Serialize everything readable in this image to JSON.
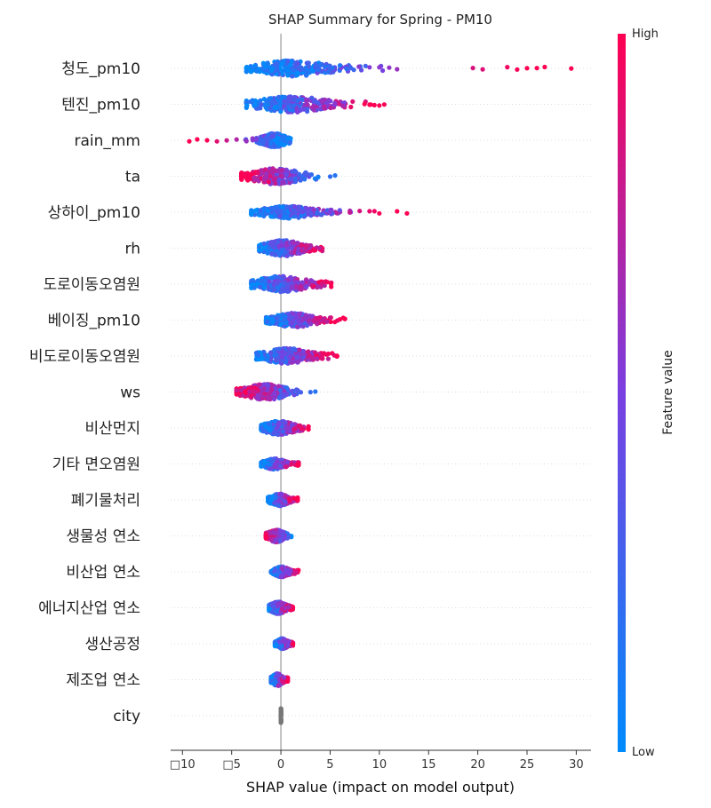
{
  "chart_data": {
    "type": "scatter",
    "title": "SHAP Summary for Spring - PM10",
    "xlabel": "SHAP value (impact on model output)",
    "xlim": [
      -11.2,
      31.5
    ],
    "xticks": [
      -10,
      -5,
      0,
      5,
      10,
      15,
      20,
      25,
      30
    ],
    "xtick_labels": [
      "□10",
      "□5",
      "0",
      "5",
      "10",
      "15",
      "20",
      "25",
      "30"
    ],
    "colorbar": {
      "label": "Feature value",
      "high": "High",
      "low": "Low",
      "color_low": "#008bfb",
      "color_high": "#ff0052"
    },
    "features": [
      {
        "name": "청도_pm10",
        "min": -3.5,
        "max": 29.5,
        "core": [
          -3.0,
          8.0
        ],
        "outliers": [
          9,
          10,
          11,
          11.8,
          19.5,
          20.5,
          23,
          24,
          25,
          26,
          26.8,
          29.5
        ],
        "trend": 1,
        "spread": 9
      },
      {
        "name": "텐진_pm10",
        "min": -3.5,
        "max": 10.5,
        "core": [
          -3.0,
          8.0
        ],
        "outliers": [
          8.5,
          9,
          9.5,
          10,
          10.5
        ],
        "trend": 1,
        "spread": 9
      },
      {
        "name": "rain_mm",
        "min": -9.3,
        "max": 1.5,
        "core": [
          -2.0,
          1.5
        ],
        "outliers": [
          -9.3,
          -8.5,
          -7.5,
          -6.5,
          -5.5,
          -4.5,
          -3.5,
          -2.5
        ],
        "trend": -1,
        "spread": 8
      },
      {
        "name": "ta",
        "min": -4.0,
        "max": 5.5,
        "core": [
          -3.5,
          4.5
        ],
        "outliers": [
          5.0,
          5.5
        ],
        "trend": -1,
        "spread": 9
      },
      {
        "name": "상하이_pm10",
        "min": -3.0,
        "max": 12.8,
        "core": [
          -2.5,
          6.0
        ],
        "outliers": [
          7,
          8,
          9,
          9.5,
          10,
          11.8,
          12.8
        ],
        "trend": 1,
        "spread": 7
      },
      {
        "name": "rh",
        "min": -2.2,
        "max": 4.2,
        "core": [
          -2.0,
          4.0
        ],
        "outliers": [],
        "trend": 1,
        "spread": 9
      },
      {
        "name": "도로이동오염원",
        "min": -3.0,
        "max": 5.3,
        "core": [
          -3.0,
          5.0
        ],
        "outliers": [],
        "trend": 1,
        "spread": 9
      },
      {
        "name": "베이징_pm10",
        "min": -1.5,
        "max": 6.5,
        "core": [
          -1.2,
          5.5
        ],
        "outliers": [
          6.0,
          6.5
        ],
        "trend": 1,
        "spread": 8
      },
      {
        "name": "비도로이동오염원",
        "min": -2.5,
        "max": 5.7,
        "core": [
          -2.0,
          4.8
        ],
        "outliers": [
          -2.3,
          5.7
        ],
        "trend": 1,
        "spread": 9
      },
      {
        "name": "ws",
        "min": -4.5,
        "max": 3.5,
        "core": [
          -4.0,
          2.5
        ],
        "outliers": [
          3.0,
          3.5
        ],
        "trend": -1,
        "spread": 9
      },
      {
        "name": "비산먼지",
        "min": -2.0,
        "max": 2.8,
        "core": [
          -2.0,
          2.8
        ],
        "outliers": [],
        "trend": 1,
        "spread": 8
      },
      {
        "name": "기타 면오염원",
        "min": -2.0,
        "max": 1.8,
        "core": [
          -2.0,
          1.5
        ],
        "outliers": [],
        "trend": 1,
        "spread": 6
      },
      {
        "name": "폐기물처리",
        "min": -1.3,
        "max": 1.7,
        "core": [
          -1.2,
          1.5
        ],
        "outliers": [],
        "trend": 1,
        "spread": 7
      },
      {
        "name": "생물성 연소",
        "min": -1.5,
        "max": 1.3,
        "core": [
          -1.5,
          1.2
        ],
        "outliers": [],
        "trend": -1,
        "spread": 7
      },
      {
        "name": "비산업 연소",
        "min": -1.0,
        "max": 1.8,
        "core": [
          -0.8,
          1.5
        ],
        "outliers": [],
        "trend": 1,
        "spread": 6
      },
      {
        "name": "에너지산업 연소",
        "min": -1.2,
        "max": 1.2,
        "core": [
          -1.2,
          1.2
        ],
        "outliers": [],
        "trend": 1,
        "spread": 7
      },
      {
        "name": "생산공정",
        "min": -0.6,
        "max": 1.4,
        "core": [
          -0.5,
          1.2
        ],
        "outliers": [],
        "trend": 1,
        "spread": 6
      },
      {
        "name": "제조업 연소",
        "min": -1.0,
        "max": 0.7,
        "core": [
          -1.0,
          0.7
        ],
        "outliers": [],
        "trend": 1,
        "spread": 7
      },
      {
        "name": "city",
        "min": 0.0,
        "max": 0.0,
        "core": [
          -0.1,
          0.1
        ],
        "outliers": [],
        "trend": 0,
        "spread": 8
      }
    ]
  }
}
